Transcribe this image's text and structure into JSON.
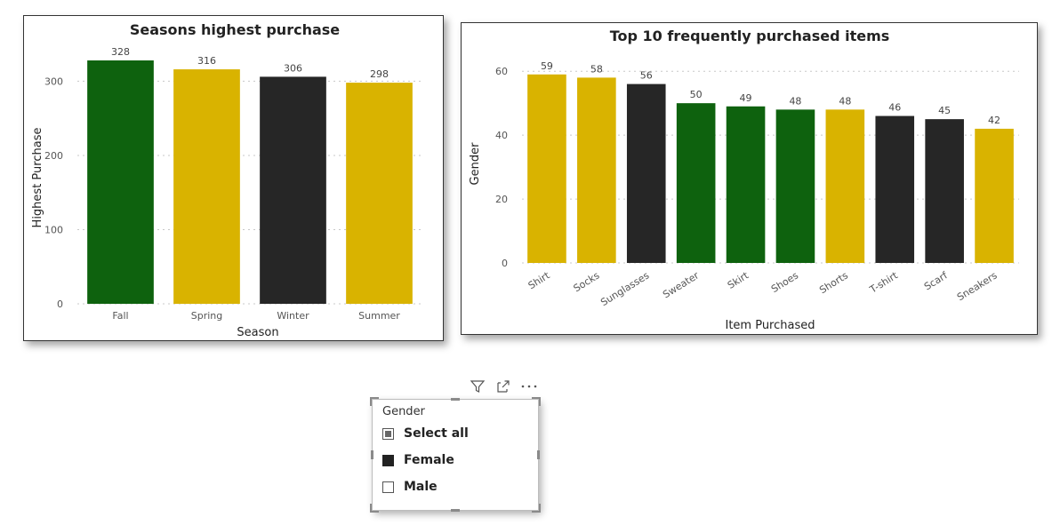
{
  "chart_data": [
    {
      "type": "bar",
      "title": "Seasons highest purchase",
      "xlabel": "Season",
      "ylabel": "Highest Purchase",
      "categories": [
        "Fall",
        "Spring",
        "Winter",
        "Summer"
      ],
      "values": [
        328,
        316,
        306,
        298
      ],
      "colors": [
        "#0e620e",
        "#d9b300",
        "#262626",
        "#d9b300"
      ],
      "ylim": [
        0,
        340
      ],
      "yticks": [
        0,
        100,
        200,
        300
      ],
      "grid": true
    },
    {
      "type": "bar",
      "title": "Top 10 frequently purchased items",
      "xlabel": "Item Purchased",
      "ylabel": "Gender",
      "categories": [
        "Shirt",
        "Socks",
        "Sunglasses",
        "Sweater",
        "Skirt",
        "Shoes",
        "Shorts",
        "T-shirt",
        "Scarf",
        "Sneakers"
      ],
      "values": [
        59,
        58,
        56,
        50,
        49,
        48,
        48,
        46,
        45,
        42
      ],
      "colors": [
        "#d9b300",
        "#d9b300",
        "#262626",
        "#0e620e",
        "#0e620e",
        "#0e620e",
        "#d9b300",
        "#262626",
        "#262626",
        "#d9b300"
      ],
      "ylim": [
        0,
        62
      ],
      "yticks": [
        0,
        20,
        40,
        60
      ],
      "grid": true
    }
  ],
  "slicer": {
    "title": "Gender",
    "items": [
      {
        "label": "Select all",
        "state": "partial"
      },
      {
        "label": "Female",
        "state": "checked"
      },
      {
        "label": "Male",
        "state": "unchecked"
      }
    ],
    "toolbar_icons": [
      "filter-icon",
      "focus-mode-icon",
      "more-options-icon"
    ]
  }
}
